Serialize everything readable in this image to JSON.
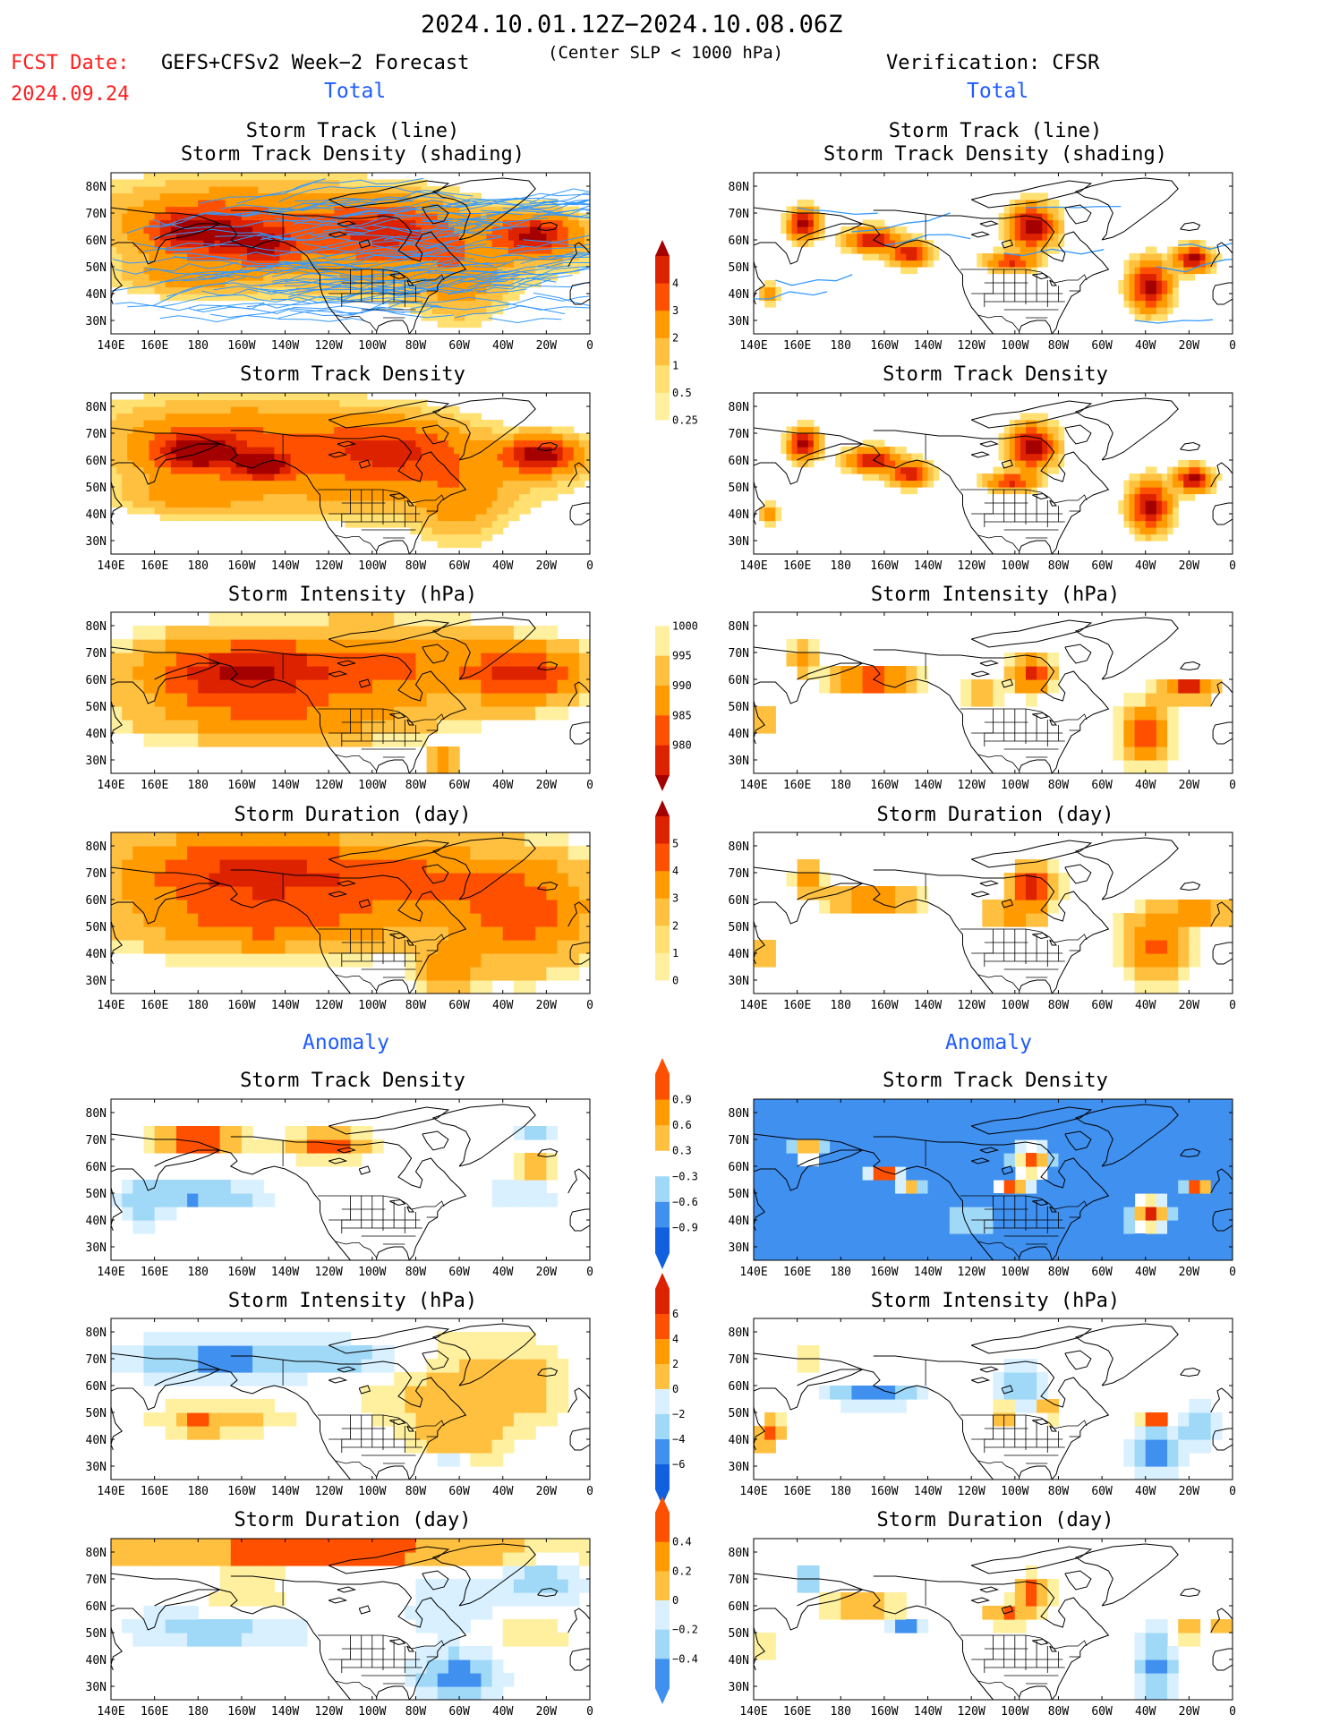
{
  "header": {
    "period": "2024.10.01.12Z−2024.10.08.06Z",
    "fcst_label": "FCST Date:",
    "fcst_date": "2024.09.24",
    "model": "GEFS+CFSv2 Week−2 Forecast",
    "criterion": "(Center SLP < 1000 hPa)",
    "verification": "Verification: CFSR"
  },
  "sections": {
    "total_left": "Total",
    "total_right": "Total",
    "anomaly_left": "Anomaly",
    "anomaly_right": "Anomaly"
  },
  "panel_titles": {
    "track_line": "Storm Track (line)",
    "track_shading": "Storm Track Density (shading)",
    "density": "Storm Track Density",
    "intensity": "Storm Intensity (hPa)",
    "duration": "Storm Duration (day)"
  },
  "axes": {
    "lon_ticks": [
      "140E",
      "160E",
      "180",
      "160W",
      "140W",
      "120W",
      "100W",
      "80W",
      "60W",
      "40W",
      "20W",
      "0"
    ],
    "lat_ticks": [
      "80N",
      "70N",
      "60N",
      "50N",
      "40N",
      "30N"
    ]
  },
  "colorbars": {
    "density": [
      "4",
      "3",
      "2",
      "1",
      "0.5",
      "0.25"
    ],
    "intensity": [
      "1000",
      "995",
      "990",
      "985",
      "980"
    ],
    "duration": [
      "5",
      "4",
      "3",
      "2",
      "1",
      "0"
    ],
    "density_anom": [
      "0.9",
      "0.6",
      "0.3",
      "−0.3",
      "−0.6",
      "−0.9"
    ],
    "intensity_anom": [
      "6",
      "4",
      "2",
      "0",
      "−2",
      "−4",
      "−6"
    ],
    "duration_anom": [
      "0.4",
      "0.2",
      "0",
      "−0.2",
      "−0.4"
    ]
  },
  "colors": {
    "title_red": "#ff2020",
    "section_blue": "#1e5cff",
    "track_line": "#3399ff",
    "dark_red": "#a50000",
    "red": "#dd2200",
    "orange_red": "#ff5000",
    "orange": "#ff9a00",
    "light_orange": "#ffc040",
    "pale_yellow": "#fff0a0",
    "dark_blue": "#1060e0",
    "blue": "#4090f0",
    "light_blue": "#a0d8f8",
    "pale_blue": "#d8f0ff"
  }
}
